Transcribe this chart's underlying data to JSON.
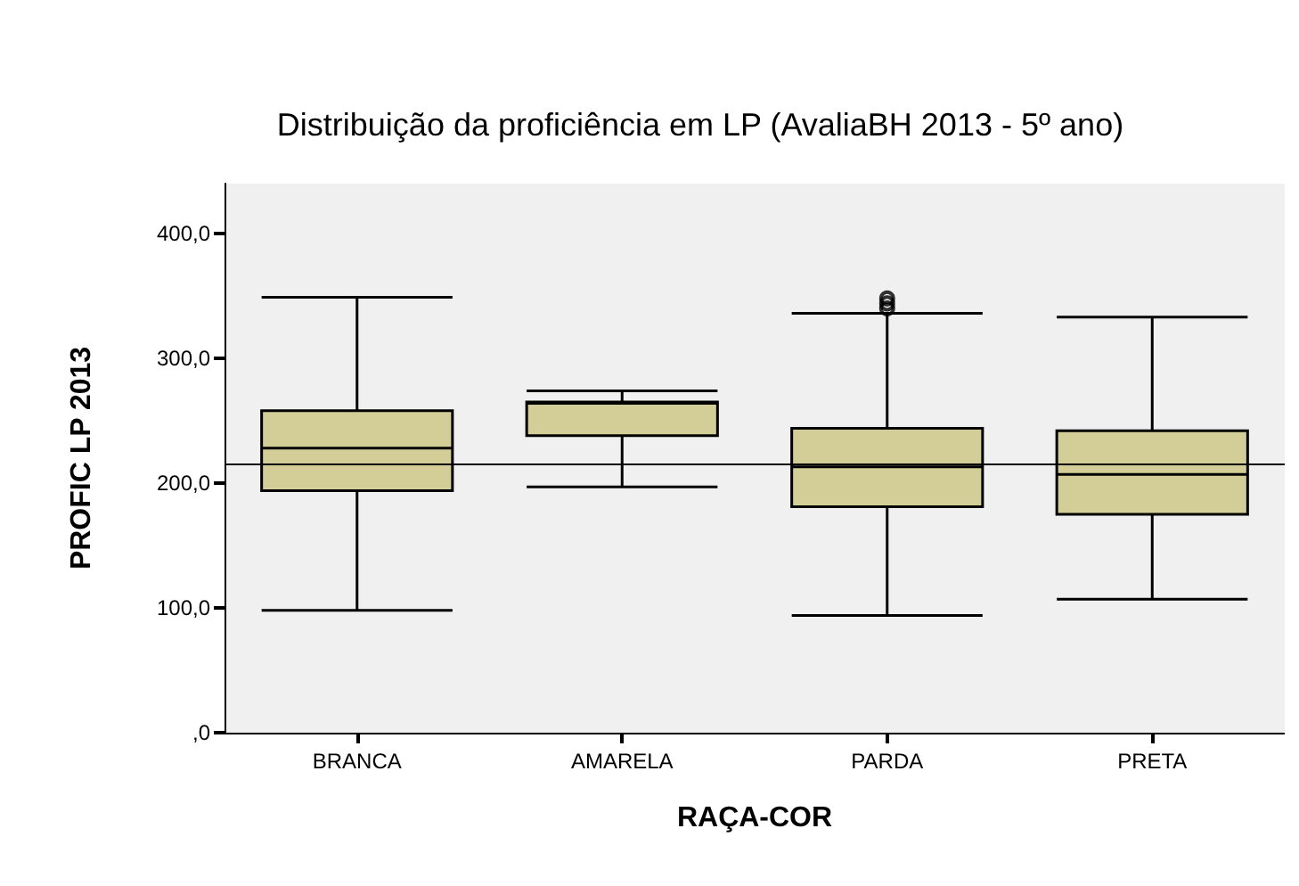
{
  "chart_data": {
    "type": "box",
    "title": "Distribuição da proficiência em LP (AvaliaBH 2013 - 5º ano)",
    "xlabel": "RAÇA-COR",
    "ylabel": "PROFIC LP 2013",
    "categories": [
      "BRANCA",
      "AMARELA",
      "PARDA",
      "PRETA"
    ],
    "series": [
      {
        "color": "#d3ce97",
        "boxes": [
          {
            "low": 98,
            "q1": 194,
            "median": 228,
            "q3": 258,
            "high": 349
          },
          {
            "low": 197,
            "q1": 238,
            "median": 264,
            "q3": 265,
            "high": 274
          },
          {
            "low": 94,
            "q1": 181,
            "median": 213,
            "q3": 244,
            "high": 336,
            "outliers": [
              340,
              344,
              348
            ]
          },
          {
            "low": 107,
            "q1": 175,
            "median": 207,
            "q3": 242,
            "high": 333
          }
        ]
      }
    ],
    "ylim": [
      0,
      440
    ],
    "yticks": [
      {
        "value": 0,
        "label": ",0"
      },
      {
        "value": 100,
        "label": "100,0"
      },
      {
        "value": 200,
        "label": "200,0"
      },
      {
        "value": 300,
        "label": "300,0"
      },
      {
        "value": 400,
        "label": "400,0"
      }
    ],
    "ref_lines": [
      {
        "axis": "y",
        "value": 216,
        "color": "#000000"
      }
    ],
    "grid": false
  }
}
